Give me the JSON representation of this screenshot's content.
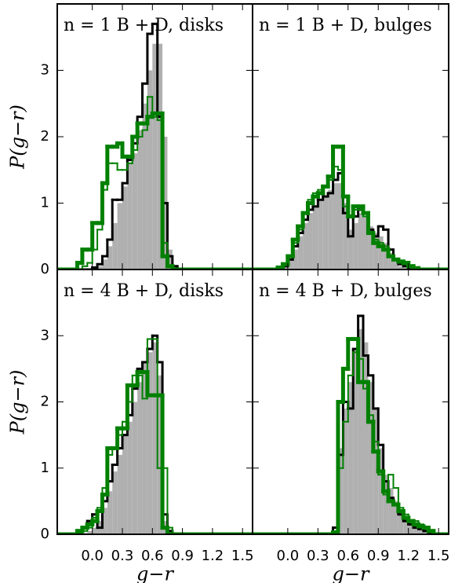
{
  "chart_data": [
    {
      "type": "histogram",
      "title": "n = 1 B + D, disks",
      "ylabel": "P(g−r)",
      "xlim": [
        -0.35,
        1.6
      ],
      "ylim": [
        0,
        4
      ],
      "yticks": [
        0,
        1,
        2,
        3
      ],
      "bins": [
        -0.35,
        -0.3,
        -0.25,
        -0.2,
        -0.15,
        -0.1,
        -0.05,
        0,
        0.05,
        0.1,
        0.15,
        0.2,
        0.25,
        0.3,
        0.35,
        0.4,
        0.45,
        0.5,
        0.55,
        0.6,
        0.65,
        0.7,
        0.75,
        0.8,
        0.85,
        0.9,
        0.95,
        1,
        1.05,
        1.1,
        1.15,
        1.2,
        1.25,
        1.3,
        1.35,
        1.4,
        1.45,
        1.5,
        1.55,
        1.6
      ],
      "series": [
        {
          "color": "#b0b0b0",
          "fill": true,
          "values": [
            0,
            0,
            0,
            0,
            0,
            0,
            0,
            0.02,
            0.05,
            0.15,
            0.35,
            0.7,
            1.0,
            1.25,
            1.6,
            1.75,
            2.1,
            2.5,
            3.0,
            3.4,
            3.4,
            2.0,
            0.3,
            0.05,
            0,
            0,
            0,
            0,
            0,
            0,
            0,
            0,
            0,
            0,
            0,
            0,
            0,
            0,
            0
          ]
        },
        {
          "color": "#000000",
          "dash": true,
          "width": 3,
          "values": [
            0,
            0,
            0,
            0,
            0,
            0,
            0,
            0.03,
            0.08,
            0.2,
            0.45,
            1.05,
            1.05,
            1.3,
            1.65,
            1.9,
            2.3,
            2.8,
            3.55,
            3.7,
            2.3,
            1.0,
            0.2,
            0.05,
            0,
            0,
            0,
            0,
            0,
            0,
            0,
            0,
            0,
            0,
            0,
            0,
            0,
            0,
            0
          ]
        },
        {
          "color": "#008000",
          "width": 2,
          "values": [
            0,
            0,
            0,
            0,
            0,
            0.05,
            0.1,
            0.3,
            0.6,
            1.2,
            1.6,
            1.6,
            1.5,
            1.5,
            1.6,
            1.8,
            2.0,
            2.1,
            2.6,
            2.3,
            2.25,
            0.4,
            0.05,
            0,
            0,
            0,
            0,
            0,
            0,
            0,
            0,
            0,
            0,
            0,
            0,
            0,
            0,
            0,
            0
          ]
        },
        {
          "color": "#008000",
          "width": 5,
          "values": [
            0,
            0,
            0,
            0,
            0.1,
            0.3,
            0.3,
            0.7,
            0.7,
            1.3,
            1.85,
            1.85,
            1.9,
            1.7,
            1.7,
            2.0,
            2.2,
            2.2,
            2.3,
            2.35,
            2.35,
            0.2,
            0.05,
            0,
            0,
            0,
            0,
            0,
            0,
            0,
            0,
            0,
            0,
            0,
            0,
            0,
            0,
            0,
            0
          ]
        }
      ]
    },
    {
      "type": "histogram",
      "title": "n = 1 B + D, bulges",
      "xlim": [
        -0.35,
        1.6
      ],
      "ylim": [
        0,
        4
      ],
      "bins": [
        -0.35,
        -0.3,
        -0.25,
        -0.2,
        -0.15,
        -0.1,
        -0.05,
        0,
        0.05,
        0.1,
        0.15,
        0.2,
        0.25,
        0.3,
        0.35,
        0.4,
        0.45,
        0.5,
        0.55,
        0.6,
        0.65,
        0.7,
        0.75,
        0.8,
        0.85,
        0.9,
        0.95,
        1,
        1.05,
        1.1,
        1.15,
        1.2,
        1.25,
        1.3,
        1.35,
        1.4,
        1.45,
        1.5,
        1.55,
        1.6
      ],
      "series": [
        {
          "color": "#b0b0b0",
          "fill": true,
          "values": [
            0,
            0,
            0,
            0,
            0,
            0,
            0.05,
            0.15,
            0.3,
            0.5,
            0.7,
            0.85,
            0.95,
            1.05,
            1.1,
            1.2,
            1.3,
            1.3,
            1.0,
            0.6,
            0.7,
            0.85,
            0.8,
            0.65,
            0.55,
            0.5,
            0.4,
            0.25,
            0.12,
            0.05,
            0.03,
            0,
            0,
            0,
            0,
            0,
            0,
            0,
            0
          ]
        },
        {
          "color": "#000000",
          "dash": true,
          "width": 3,
          "values": [
            0,
            0,
            0,
            0,
            0,
            0,
            0.05,
            0.15,
            0.35,
            0.55,
            0.75,
            0.9,
            0.95,
            1.05,
            1.1,
            1.15,
            1.35,
            1.45,
            0.85,
            0.5,
            0.8,
            0.9,
            0.85,
            0.6,
            0.5,
            0.65,
            0.6,
            0.3,
            0.15,
            0.08,
            0.05,
            0,
            0,
            0,
            0,
            0,
            0,
            0,
            0
          ]
        },
        {
          "color": "#008000",
          "width": 2,
          "values": [
            0,
            0,
            0,
            0,
            0,
            0.02,
            0.07,
            0.2,
            0.4,
            0.6,
            0.85,
            1.05,
            1.15,
            1.2,
            1.25,
            1.35,
            1.55,
            1.5,
            0.95,
            0.8,
            0.9,
            0.9,
            0.8,
            0.55,
            0.45,
            0.4,
            0.35,
            0.2,
            0.15,
            0.1,
            0.08,
            0.05,
            0,
            0,
            0,
            0,
            0,
            0,
            0
          ]
        },
        {
          "color": "#008000",
          "width": 5,
          "values": [
            0,
            0,
            0,
            0,
            0,
            0.03,
            0.08,
            0.2,
            0.45,
            0.65,
            0.85,
            1.0,
            1.1,
            1.15,
            1.25,
            1.4,
            1.85,
            1.85,
            1.1,
            0.8,
            0.95,
            0.95,
            0.85,
            0.55,
            0.4,
            0.35,
            0.3,
            0.2,
            0.15,
            0.12,
            0.1,
            0.05,
            0.02,
            0,
            0,
            0,
            0,
            0,
            0
          ]
        }
      ]
    },
    {
      "type": "histogram",
      "title": "n = 4 B + D, disks",
      "xlabel": "g−r",
      "ylabel": "P(g−r)",
      "xlim": [
        -0.35,
        1.6
      ],
      "ylim": [
        0,
        4
      ],
      "yticks": [
        0,
        1,
        2,
        3
      ],
      "xticks": [
        {
          "value": 0,
          "label": "0.0"
        },
        0.3,
        0.6,
        0.9,
        1.2,
        1.5
      ],
      "bins": [
        -0.35,
        -0.3,
        -0.25,
        -0.2,
        -0.15,
        -0.1,
        -0.05,
        0,
        0.05,
        0.1,
        0.15,
        0.2,
        0.25,
        0.3,
        0.35,
        0.4,
        0.45,
        0.5,
        0.55,
        0.6,
        0.65,
        0.7,
        0.75,
        0.8,
        0.85,
        0.9,
        0.95,
        1,
        1.05,
        1.1,
        1.15,
        1.2,
        1.25,
        1.3,
        1.35,
        1.4,
        1.45,
        1.5,
        1.55,
        1.6
      ],
      "series": [
        {
          "color": "#b0b0b0",
          "fill": true,
          "values": [
            0,
            0,
            0,
            0,
            0,
            0.02,
            0.05,
            0.1,
            0.2,
            0.4,
            0.65,
            0.95,
            1.2,
            1.5,
            1.7,
            2.0,
            2.3,
            2.6,
            2.75,
            2.9,
            2.4,
            0.2,
            0.05,
            0,
            0,
            0,
            0,
            0,
            0,
            0,
            0,
            0,
            0,
            0,
            0,
            0,
            0,
            0,
            0
          ]
        },
        {
          "color": "#000000",
          "dash": true,
          "width": 3,
          "values": [
            0,
            0,
            0,
            0,
            0.05,
            0.1,
            0.2,
            0.3,
            0.1,
            0.5,
            0.8,
            1.05,
            1.3,
            1.5,
            1.8,
            2.2,
            2.5,
            2.6,
            2.8,
            3.0,
            2.6,
            0.3,
            0.05,
            0,
            0,
            0,
            0,
            0,
            0,
            0,
            0,
            0,
            0,
            0,
            0,
            0,
            0,
            0,
            0
          ]
        },
        {
          "color": "#008000",
          "width": 2,
          "values": [
            0,
            0,
            0,
            0,
            0.02,
            0.05,
            0.1,
            0.25,
            0.4,
            0.7,
            1.2,
            1.3,
            1.5,
            1.7,
            2.0,
            2.4,
            2.4,
            2.05,
            2.95,
            2.95,
            1.0,
            1.0,
            0.1,
            0,
            0,
            0,
            0,
            0,
            0,
            0,
            0,
            0,
            0,
            0,
            0,
            0,
            0,
            0,
            0
          ]
        },
        {
          "color": "#008000",
          "width": 5,
          "values": [
            0,
            0,
            0,
            0,
            0.05,
            0.1,
            0.15,
            0.2,
            0.35,
            0.6,
            1.3,
            1.3,
            1.6,
            1.6,
            2.25,
            2.25,
            2.45,
            2.45,
            2.1,
            2.1,
            2.1,
            0.1,
            0,
            0,
            0,
            0,
            0,
            0,
            0,
            0,
            0,
            0,
            0,
            0,
            0,
            0,
            0,
            0,
            0
          ]
        }
      ]
    },
    {
      "type": "histogram",
      "title": "n = 4 B + D, bulges",
      "xlabel": "g−r",
      "xlim": [
        -0.35,
        1.6
      ],
      "ylim": [
        0,
        4
      ],
      "xticks": [
        {
          "value": 0,
          "label": "0.0"
        },
        0.3,
        0.6,
        0.9,
        1.2,
        1.5
      ],
      "bins": [
        -0.35,
        -0.3,
        -0.25,
        -0.2,
        -0.15,
        -0.1,
        -0.05,
        0,
        0.05,
        0.1,
        0.15,
        0.2,
        0.25,
        0.3,
        0.35,
        0.4,
        0.45,
        0.5,
        0.55,
        0.6,
        0.65,
        0.7,
        0.75,
        0.8,
        0.85,
        0.9,
        0.95,
        1,
        1.05,
        1.1,
        1.15,
        1.2,
        1.25,
        1.3,
        1.35,
        1.4,
        1.45,
        1.5,
        1.55,
        1.6
      ],
      "series": [
        {
          "color": "#b0b0b0",
          "fill": true,
          "values": [
            0,
            0,
            0,
            0,
            0,
            0,
            0,
            0,
            0,
            0,
            0,
            0,
            0,
            0,
            0,
            0,
            0.05,
            1.3,
            1.9,
            2.3,
            2.8,
            3.1,
            2.9,
            2.3,
            1.9,
            1.3,
            0.9,
            0.7,
            0.5,
            0.35,
            0.25,
            0.2,
            0.15,
            0.1,
            0.08,
            0.05,
            0.03,
            0,
            0
          ]
        },
        {
          "color": "#000000",
          "dash": true,
          "width": 3,
          "values": [
            0,
            0,
            0,
            0,
            0,
            0,
            0,
            0,
            0,
            0,
            0,
            0,
            0,
            0,
            0,
            0,
            0.1,
            1.2,
            2.0,
            1.9,
            2.8,
            3.3,
            2.7,
            2.4,
            1.9,
            1.35,
            0.8,
            0.55,
            0.45,
            0.3,
            0.2,
            0.15,
            0.1,
            0.08,
            0.05,
            0.03,
            0,
            0,
            0
          ]
        },
        {
          "color": "#008000",
          "width": 2,
          "values": [
            0,
            0,
            0,
            0,
            0,
            0,
            0,
            0,
            0,
            0,
            0,
            0,
            0,
            0,
            0,
            0,
            0.03,
            1.0,
            1.7,
            2.4,
            2.75,
            2.65,
            2.2,
            1.8,
            1.4,
            0.9,
            0.6,
            0.9,
            0.7,
            0.4,
            0.3,
            0.2,
            0.2,
            0.15,
            0.1,
            0.05,
            0,
            0,
            0
          ]
        },
        {
          "color": "#008000",
          "width": 5,
          "values": [
            0,
            0,
            0,
            0,
            0,
            0,
            0,
            0,
            0,
            0,
            0,
            0,
            0,
            0,
            0,
            0,
            0.03,
            2.0,
            2.5,
            2.95,
            2.95,
            2.3,
            2.3,
            1.7,
            1.25,
            0.95,
            0.65,
            0.5,
            0.45,
            0.35,
            0.25,
            0.2,
            0.15,
            0.12,
            0.1,
            0.05,
            0,
            0,
            0
          ]
        }
      ]
    }
  ]
}
